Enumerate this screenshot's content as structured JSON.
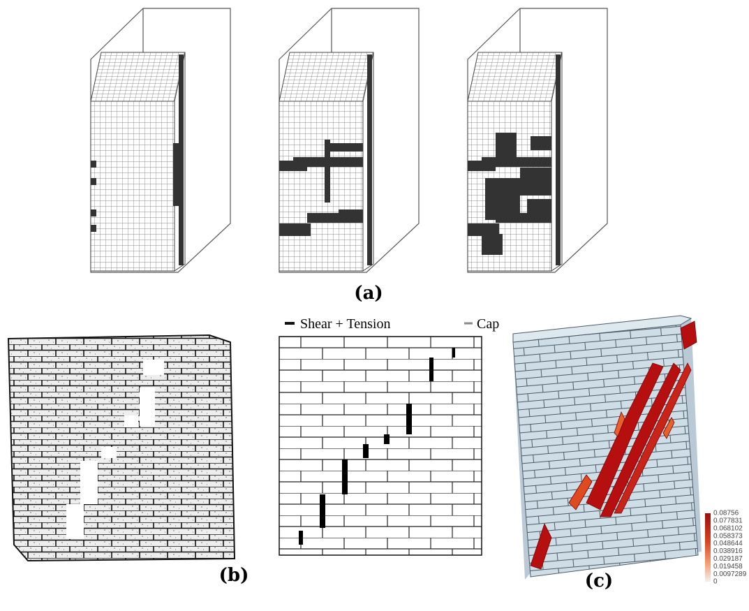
{
  "panels": {
    "a": {
      "label": "(a)"
    },
    "b": {
      "label": "(b)",
      "legend": [
        "Shear + Tension",
        "Cap"
      ]
    },
    "c": {
      "label": "(c)",
      "colorbar": [
        "0.08756",
        "0.077831",
        "0.068102",
        "0.058373",
        "0.048644",
        "0.038916",
        "0.029187",
        "0.019458",
        "0.0097289",
        "0"
      ]
    }
  }
}
